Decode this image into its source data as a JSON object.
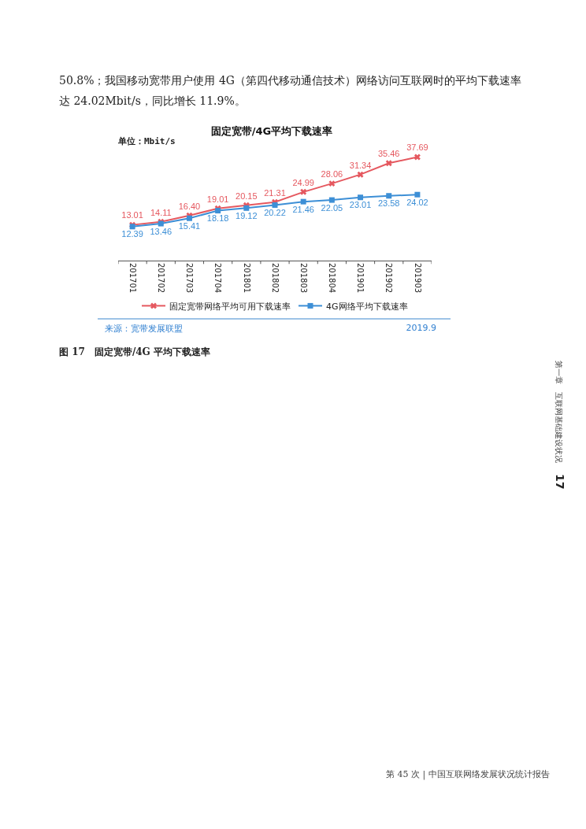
{
  "chart_data": {
    "type": "line",
    "title": "固定宽带/4G平均下载速率",
    "categories": [
      "201701",
      "201702",
      "201703",
      "201704",
      "201801",
      "201802",
      "201803",
      "201804",
      "201901",
      "201902",
      "201903"
    ],
    "series": [
      {
        "name": "固定宽带网络平均可用下载速率",
        "color": "#e5585f",
        "marker": "cross",
        "values": [
          13.01,
          14.11,
          16.4,
          19.01,
          20.15,
          21.31,
          24.99,
          28.06,
          31.34,
          35.46,
          37.69
        ],
        "value_labels": [
          "13.01",
          "14.11",
          "16.40",
          "19.01",
          "20.15",
          "21.31",
          "24.99",
          "28.06",
          "31.34",
          "35.46",
          "37.69"
        ]
      },
      {
        "name": "4G网络平均下载速率",
        "color": "#3d8fd6",
        "marker": "square",
        "values": [
          12.39,
          13.46,
          15.41,
          18.18,
          19.12,
          20.22,
          21.46,
          22.05,
          23.01,
          23.58,
          24.02
        ]
      }
    ],
    "data_labels": true,
    "legend": "bottom",
    "grid": false,
    "tick_labels": "x",
    "line_style": "solid",
    "annotations": [
      "单位：Mbit/s",
      "来源：宽带发展联盟",
      "2019.9",
      "50.8%；我国移动宽带用户使用 4G（第四代移动通信技术）网络访问互联网时的平均下载速率",
      "达 24.02Mbit/s，同比增长 11.9%。",
      "图 17　固定宽带/4G 平均下载速率",
      "第一章　互联网基础建设状况",
      "17",
      "第 45 次 | 中国互联网络发展状况统计报告"
    ]
  }
}
